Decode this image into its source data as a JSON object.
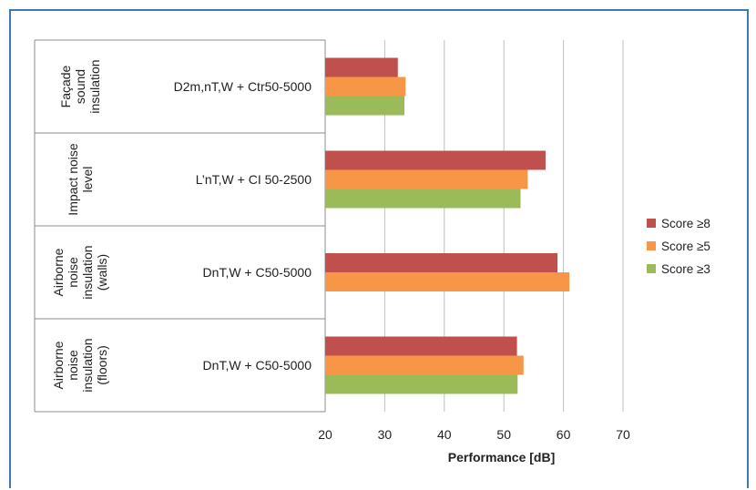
{
  "chart_data": {
    "type": "bar",
    "orientation": "horizontal",
    "xlabel": "Performance [dB]",
    "xlim": [
      20,
      70
    ],
    "xticks": [
      "20",
      "30",
      "40",
      "50",
      "60",
      "70"
    ],
    "grid": true,
    "legend_position": "right",
    "categories": [
      {
        "group": [
          "Façade",
          "sound",
          "insulation"
        ],
        "metric": "D2m,nT,W + Ctr50-5000"
      },
      {
        "group": [
          "Impact noise",
          "level"
        ],
        "metric": "L’nT,W + CI 50-2500"
      },
      {
        "group": [
          "Airborne",
          "noise",
          "insulation",
          "(walls)"
        ],
        "metric": "DnT,W + C50-5000"
      },
      {
        "group": [
          "Airborne",
          "noise",
          "insulation",
          "(floors)"
        ],
        "metric": "DnT,W + C50-5000"
      }
    ],
    "series": [
      {
        "name": "Score ≥8",
        "color": "#c0504d",
        "values": [
          32.2,
          57,
          59,
          52.2
        ]
      },
      {
        "name": "Score ≥5",
        "color": "#f79646",
        "values": [
          33.5,
          54,
          61,
          53.3
        ]
      },
      {
        "name": "Score ≥3",
        "color": "#9bbb59",
        "values": [
          33.3,
          52.8,
          null,
          52.3
        ]
      }
    ]
  }
}
